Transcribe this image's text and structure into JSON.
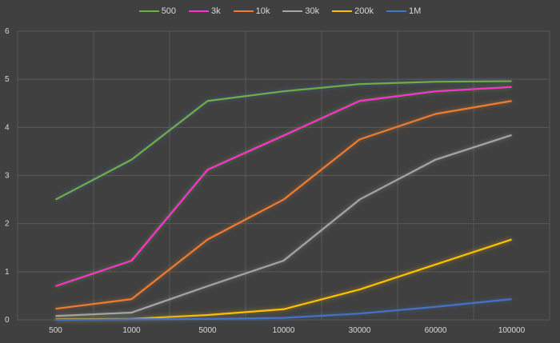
{
  "chart_data": {
    "type": "line",
    "title": "",
    "xlabel": "",
    "ylabel": "",
    "categories": [
      "500",
      "1000",
      "5000",
      "10000",
      "30000",
      "60000",
      "100000"
    ],
    "ylim": [
      0,
      6
    ],
    "yticks": [
      "0",
      "1",
      "2",
      "3",
      "4",
      "5",
      "6"
    ],
    "grid": true,
    "legend_position": "top",
    "series": [
      {
        "name": "500",
        "color": "#70ad47",
        "glow": "#4a7fc0",
        "values": [
          2.5,
          3.33,
          4.55,
          4.75,
          4.9,
          4.95,
          4.96
        ]
      },
      {
        "name": "3k",
        "color": "#ff33cc",
        "glow": "#70ad47",
        "values": [
          0.7,
          1.23,
          3.12,
          3.83,
          4.55,
          4.75,
          4.84
        ]
      },
      {
        "name": "10k",
        "color": "#ed7d31",
        "glow": "#ed7d31",
        "values": [
          0.23,
          0.43,
          1.67,
          2.5,
          3.75,
          4.28,
          4.55
        ]
      },
      {
        "name": "30k",
        "color": "#a5a5a5",
        "glow": "#a5a5a5",
        "values": [
          0.08,
          0.15,
          0.7,
          1.23,
          2.5,
          3.33,
          3.84
        ]
      },
      {
        "name": "200k",
        "color": "#ffc000",
        "glow": "#ffc000",
        "values": [
          0.01,
          0.02,
          0.1,
          0.22,
          0.63,
          1.15,
          1.67
        ]
      },
      {
        "name": "1M",
        "color": "#4472c4",
        "glow": "#4472c4",
        "values": [
          0.0,
          0.01,
          0.02,
          0.04,
          0.13,
          0.27,
          0.43
        ]
      }
    ]
  }
}
